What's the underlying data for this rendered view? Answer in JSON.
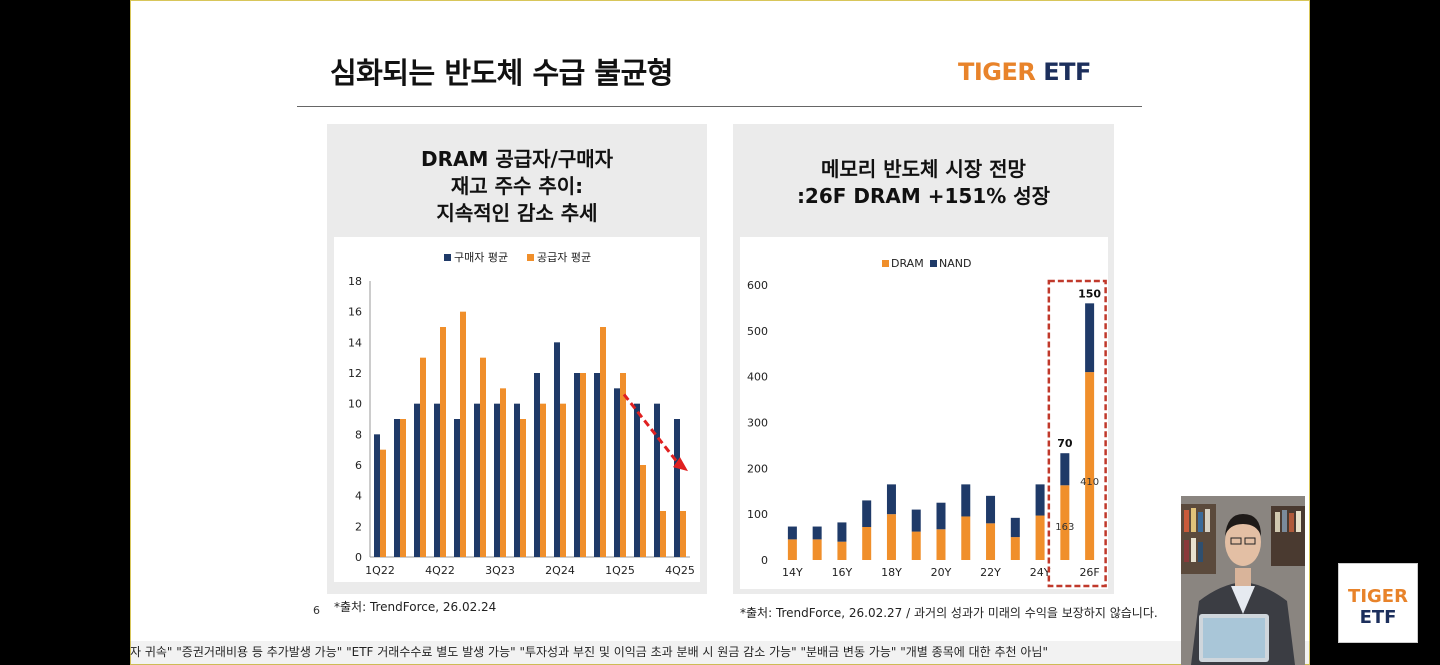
{
  "slide": {
    "title": "심화되는 반도체 수급 불균형",
    "logo_tiger": "TIGER",
    "logo_etf": "ETF",
    "page_number": "6"
  },
  "left_panel": {
    "title_lines": [
      "DRAM 공급자/구매자",
      "재고 주수 추이:",
      "지속적인 감소 추세"
    ],
    "source": "*출처: TrendForce, 26.02.24"
  },
  "right_panel": {
    "title_lines": [
      "메모리 반도체 시장 전망",
      ":26F DRAM +151% 성장"
    ],
    "source": "*출처: TrendForce, 26.02.27 / 과거의 성과가 미래의 수익을 보장하지 않습니다."
  },
  "chart_data": [
    {
      "type": "bar",
      "categories": [
        "1Q22",
        "2Q22",
        "3Q22",
        "4Q22",
        "1Q23",
        "2Q23",
        "3Q23",
        "4Q23",
        "1Q24",
        "2Q24",
        "3Q24",
        "4Q24",
        "1Q25",
        "2Q25",
        "3Q25",
        "4Q25"
      ],
      "x_tick_labels": [
        "1Q22",
        "4Q22",
        "3Q23",
        "2Q24",
        "1Q25",
        "4Q25"
      ],
      "series": [
        {
          "name": "구매자 평균",
          "color": "#1f3a68",
          "values": [
            8,
            9,
            10,
            10,
            9,
            10,
            10,
            10,
            12,
            14,
            12,
            12,
            11,
            10,
            10,
            9
          ]
        },
        {
          "name": "공급자 평균",
          "color": "#f08f2b",
          "values": [
            7,
            9,
            13,
            15,
            16,
            13,
            11,
            9,
            10,
            10,
            12,
            15,
            12,
            6,
            3,
            3
          ]
        }
      ],
      "ylim": [
        0,
        18
      ],
      "y_ticks": [
        0,
        2,
        4,
        6,
        8,
        10,
        12,
        14,
        16,
        18
      ],
      "legend": "top-center",
      "annotation": "red dashed downward arrow"
    },
    {
      "type": "bar",
      "stacked": true,
      "categories": [
        "14Y",
        "15Y",
        "16Y",
        "17Y",
        "18Y",
        "19Y",
        "20Y",
        "21Y",
        "22Y",
        "23Y",
        "24Y",
        "25Y",
        "26F"
      ],
      "x_tick_labels": [
        "14Y",
        "16Y",
        "18Y",
        "20Y",
        "22Y",
        "24Y",
        "26F"
      ],
      "series": [
        {
          "name": "DRAM",
          "color": "#f08f2b",
          "values": [
            45,
            45,
            40,
            72,
            100,
            62,
            67,
            95,
            80,
            50,
            97,
            163,
            410
          ]
        },
        {
          "name": "NAND",
          "color": "#1f3a68",
          "values": [
            28,
            28,
            42,
            58,
            65,
            48,
            58,
            70,
            60,
            42,
            68,
            70,
            150
          ]
        }
      ],
      "data_labels": [
        {
          "category": "25Y",
          "series": "NAND",
          "text": "70"
        },
        {
          "category": "25Y",
          "series": "DRAM",
          "text": "163"
        },
        {
          "category": "26F",
          "series": "NAND",
          "text": "150"
        },
        {
          "category": "26F",
          "series": "DRAM",
          "text": "410"
        }
      ],
      "ylim": [
        0,
        600
      ],
      "y_ticks": [
        0,
        100,
        200,
        300,
        400,
        500,
        600
      ],
      "legend": "top-center",
      "highlight": "red dashed box around 25Y-26F"
    }
  ],
  "ticker_text": "자 귀속\" \"증권거래비용 등 추가발생 가능\" \"ETF 거래수수료 별도 발생 가능\" \"투자성과 부진 및 이익금 초과 분배 시 원금 감소 가능\" \"분배금 변동 가능\" \"개별 종목에 대한 추천 아님\"",
  "corner_logo": {
    "line1": "TIGER",
    "line2": "ETF"
  }
}
